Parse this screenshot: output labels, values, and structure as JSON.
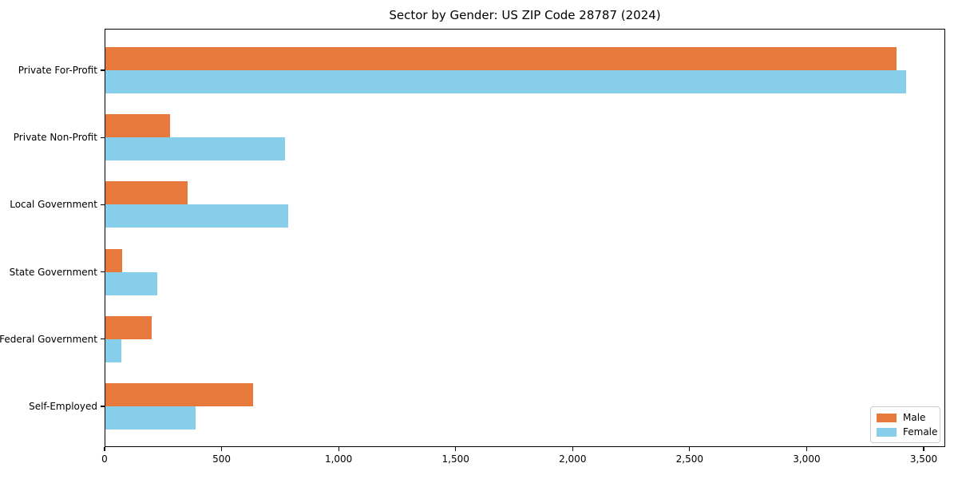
{
  "chart_data": {
    "type": "bar",
    "orientation": "horizontal",
    "title": "Sector by Gender: US ZIP Code 28787 (2024)",
    "categories": [
      "Private For-Profit",
      "Private Non-Profit",
      "Local Government",
      "State Government",
      "Federal Government",
      "Self-Employed"
    ],
    "series": [
      {
        "name": "Male",
        "color": "#e8793d",
        "values": [
          3385,
          280,
          355,
          75,
          200,
          635
        ]
      },
      {
        "name": "Female",
        "color": "#87ceeb",
        "values": [
          3425,
          770,
          785,
          225,
          70,
          390
        ]
      }
    ],
    "xlim": [
      0,
      3586
    ],
    "x_ticks": [
      0,
      500,
      1000,
      1500,
      2000,
      2500,
      3000,
      3500
    ],
    "x_tick_labels": [
      "0",
      "500",
      "1,000",
      "1,500",
      "2,000",
      "2,500",
      "3,000",
      "3,500"
    ],
    "xlabel": "",
    "ylabel": "",
    "grid": false,
    "legend": {
      "position": "lower right",
      "entries": [
        "Male",
        "Female"
      ]
    },
    "colors": {
      "male": "#e8793d",
      "female": "#87ceeb",
      "axis": "#000000",
      "background": "#ffffff",
      "legend_border": "#cccccc"
    }
  }
}
